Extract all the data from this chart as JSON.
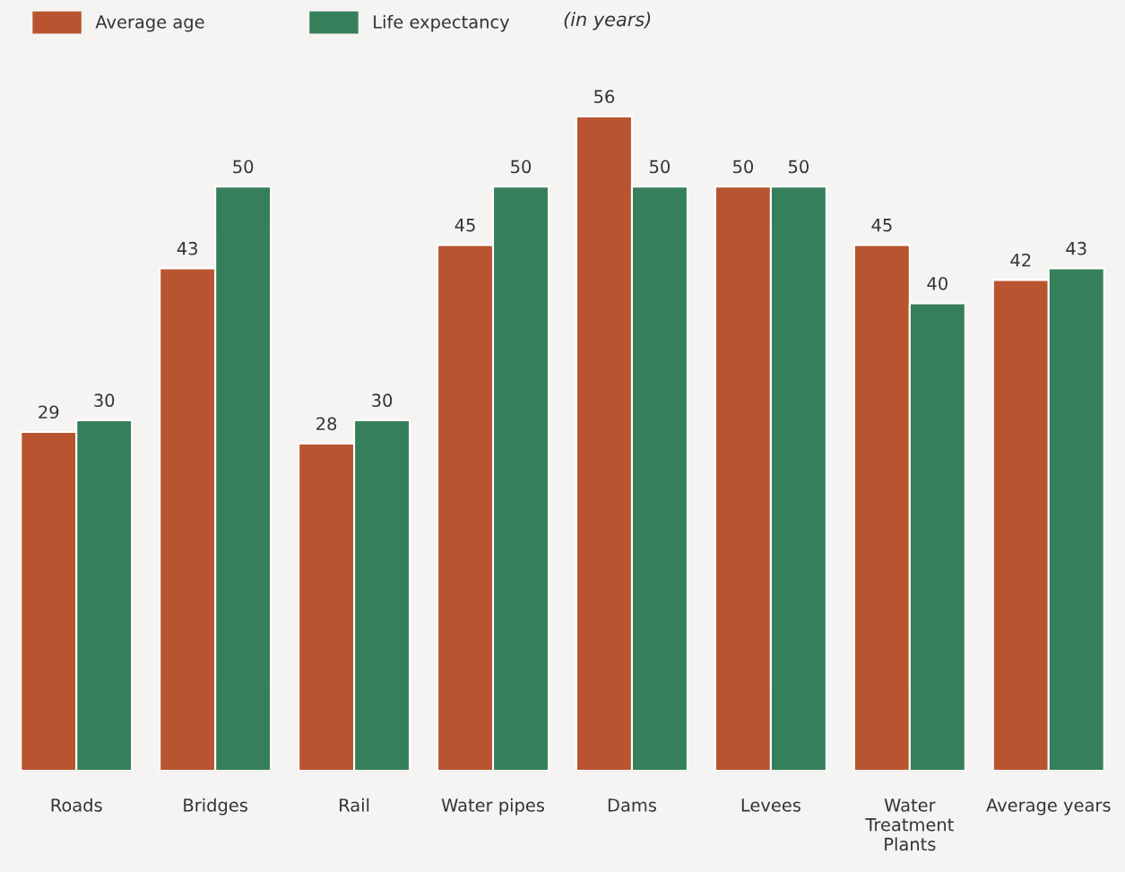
{
  "chart_data": {
    "type": "bar",
    "categories": [
      "Roads",
      "Bridges",
      "Rail",
      "Water pipes",
      "Dams",
      "Levees",
      "Water\nTreatment\nPlants",
      "Average years"
    ],
    "series": [
      {
        "name": "Average age",
        "color": "#b85530",
        "values": [
          29,
          43,
          28,
          45,
          56,
          50,
          45,
          42
        ]
      },
      {
        "name": "Life expectancy",
        "color": "#35805a",
        "values": [
          30,
          50,
          30,
          50,
          50,
          50,
          40,
          43
        ]
      }
    ],
    "tick_labels": "x",
    "data_labels": true,
    "legend": "top left",
    "grid": false,
    "annotations": [
      "(in years)"
    ]
  }
}
